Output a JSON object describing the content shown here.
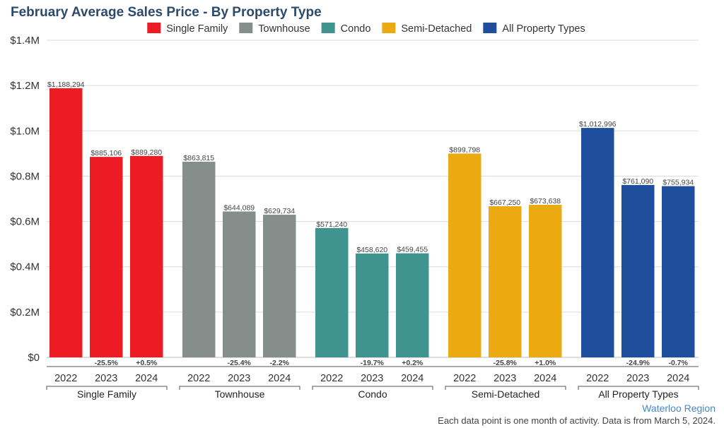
{
  "chart_data": {
    "type": "bar",
    "title": "February Average Sales Price - By Property Type",
    "groups": [
      "Single Family",
      "Townhouse",
      "Condo",
      "Semi-Detached",
      "All Property Types"
    ],
    "categories": [
      "2022",
      "2023",
      "2024"
    ],
    "series": [
      {
        "name": "Single Family",
        "color": "#ed1c24",
        "values": [
          1188294,
          885106,
          889280
        ],
        "value_labels": [
          "$1,188,294",
          "$885,106",
          "$889,280"
        ],
        "change_labels": [
          "",
          "-25.5%",
          "+0.5%"
        ]
      },
      {
        "name": "Townhouse",
        "color": "#868e8b",
        "values": [
          863815,
          644089,
          629734
        ],
        "value_labels": [
          "$863,815",
          "$644,089",
          "$629,734"
        ],
        "change_labels": [
          "",
          "-25.4%",
          "-2.2%"
        ]
      },
      {
        "name": "Condo",
        "color": "#3f9490",
        "values": [
          571240,
          458620,
          459455
        ],
        "value_labels": [
          "$571,240",
          "$458,620",
          "$459,455"
        ],
        "change_labels": [
          "",
          "-19.7%",
          "+0.2%"
        ]
      },
      {
        "name": "Semi-Detached",
        "color": "#ebaa12",
        "values": [
          899798,
          667250,
          673638
        ],
        "value_labels": [
          "$899,798",
          "$667,250",
          "$673,638"
        ],
        "change_labels": [
          "",
          "-25.8%",
          "+1.0%"
        ]
      },
      {
        "name": "All Property Types",
        "color": "#1f4e9c",
        "values": [
          1012996,
          761090,
          755934
        ],
        "value_labels": [
          "$1,012,996",
          "$761,090",
          "$755,934"
        ],
        "change_labels": [
          "",
          "-24.9%",
          "-0.7%"
        ]
      }
    ],
    "ylim": [
      0,
      1400000
    ],
    "yticks": [
      0,
      200000,
      400000,
      600000,
      800000,
      1000000,
      1200000,
      1400000
    ],
    "ytick_labels": [
      "$0",
      "$0.2M",
      "$0.4M",
      "$0.6M",
      "$0.8M",
      "$1.0M",
      "$1.2M",
      "$1.4M"
    ],
    "grid": true,
    "legend": "top-center"
  },
  "region_label": "Waterloo Region",
  "footnote": "Each data point is one month of activity. Data is from March 5, 2024."
}
